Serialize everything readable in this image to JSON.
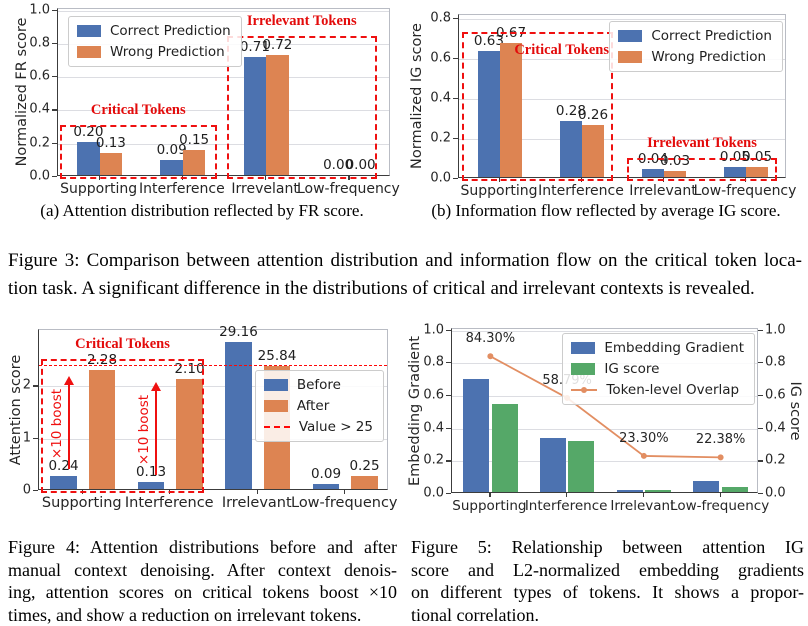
{
  "colors": {
    "blue": "#4C72B0",
    "orange": "#DD8452",
    "green": "#55A868",
    "line_orange": "#E28E62",
    "red": "#EF1010",
    "grid": "#DCDDE2"
  },
  "figure3": {
    "subcaption_a": "(a) Attention distribution reflected by FR score.",
    "subcaption_b": "(b) Information flow reflected by average IG score.",
    "caption_lines": [
      "Figure 3: Comparison between attention distribution and information flow on the critical token loca-",
      "tion task. A significant difference in the distributions of critical and irrelevant contexts is revealed."
    ]
  },
  "figure4": {
    "caption_lines": [
      "Figure 4: Attention distributions before and after",
      "manual context denoising. After context denois-",
      "ing, attention scores on critical tokens boost ×10",
      "times, and show a reduction on irrelevant tokens."
    ]
  },
  "figure5": {
    "caption_lines": [
      "Figure 5: Relationship between attention IG",
      "score and L2-normalized embedding gradients",
      "on different types of tokens. It shows a propor-",
      "tional correlation."
    ]
  },
  "chart_data": [
    {
      "dom_id": "chart-fr",
      "type": "bar",
      "title": "",
      "ylabel": "Normalized FR score",
      "ylim": [
        0,
        1.01
      ],
      "yticks": [
        0,
        0.2,
        0.4,
        0.6,
        0.8,
        1.0
      ],
      "ytick_labels": [
        "0.0",
        "0.2",
        "0.4",
        "0.6",
        "0.8",
        "1.0"
      ],
      "categories": [
        "Supporting",
        "Interference",
        "Irrevelant",
        "Low-frequency"
      ],
      "show_bar_labels": true,
      "series": [
        {
          "name": "Correct Prediction",
          "color": "blue",
          "values": [
            0.2,
            0.09,
            0.71,
            0.0
          ],
          "labels": [
            "0.20",
            "0.09",
            "0.71",
            "0.00"
          ]
        },
        {
          "name": "Wrong Prediction",
          "color": "orange",
          "values": [
            0.13,
            0.15,
            0.72,
            0.0
          ],
          "labels": [
            "0.13",
            "0.15",
            "0.72",
            "0.00"
          ]
        }
      ],
      "legend": {
        "items": [
          {
            "type": "patch",
            "color": "blue",
            "label": "Correct Prediction"
          },
          {
            "type": "patch",
            "color": "orange",
            "label": "Wrong Prediction"
          }
        ]
      },
      "boxes": [
        {
          "label": "Critical Tokens",
          "cats": [
            0,
            1
          ],
          "y0": -0.012,
          "y1": 0.315,
          "label_pos": "above",
          "inset_l": 2,
          "inset_r": 8
        },
        {
          "label": "Irrelevant Tokens",
          "cats": [
            2,
            3
          ],
          "y0": -0.012,
          "y1": 0.845,
          "label_pos": "above",
          "inset_l": 2,
          "inset_r": 14
        }
      ]
    },
    {
      "dom_id": "chart-ig",
      "type": "bar",
      "title": "",
      "ylabel": "Normalized IG score",
      "ylim": [
        0,
        0.82
      ],
      "yticks": [
        0,
        0.2,
        0.4,
        0.6,
        0.8
      ],
      "ytick_labels": [
        "0.0",
        "0.2",
        "0.4",
        "0.6",
        "0.8"
      ],
      "categories": [
        "Supporting",
        "Interference",
        "Irrelevant",
        "Low-frequency"
      ],
      "show_bar_labels": true,
      "series": [
        {
          "name": "Correct Prediction",
          "color": "blue",
          "values": [
            0.63,
            0.28,
            0.04,
            0.05
          ],
          "labels": [
            "0.63",
            "0.28",
            "0.04",
            "0.05"
          ]
        },
        {
          "name": "Wrong Prediction",
          "color": "orange",
          "values": [
            0.67,
            0.26,
            0.03,
            0.05
          ],
          "labels": [
            "0.67",
            "0.26",
            "0.03",
            "0.05"
          ]
        }
      ],
      "legend": {
        "items": [
          {
            "type": "patch",
            "color": "blue",
            "label": "Correct Prediction"
          },
          {
            "type": "patch",
            "color": "orange",
            "label": "Wrong Prediction"
          }
        ]
      },
      "boxes": [
        {
          "label": "Critical Tokens",
          "cats": [
            0,
            1
          ],
          "y0": -0.01,
          "y1": 0.735,
          "label_pos": "in-top",
          "label_fx": 0.66,
          "inset_l": 3,
          "inset_r": 10
        },
        {
          "label": "Irrelevant Tokens",
          "cats": [
            2,
            3
          ],
          "y0": -0.01,
          "y1": 0.107,
          "label_pos": "above",
          "inset_l": 4,
          "inset_r": 10
        }
      ]
    },
    {
      "dom_id": "chart-att",
      "type": "bar",
      "title": "",
      "ylabel": "Attention score",
      "ylim": [
        0,
        3.08
      ],
      "yticks": [
        0,
        1,
        2
      ],
      "ytick_labels": [
        "0",
        "1",
        "2"
      ],
      "categories": [
        "Supporting",
        "Interference",
        "Irrelevant",
        "Low-frequency"
      ],
      "show_bar_labels": true,
      "series": [
        {
          "name": "Before",
          "color": "blue",
          "values": [
            0.24,
            0.13,
            29.16,
            0.09
          ],
          "display": [
            null,
            null,
            2.81,
            null
          ],
          "labels": [
            "0.24",
            "0.13",
            "29.16",
            "0.09"
          ]
        },
        {
          "name": "After",
          "color": "orange",
          "values": [
            2.28,
            2.1,
            25.84,
            0.25
          ],
          "display": [
            null,
            null,
            2.36,
            null
          ],
          "labels": [
            "2.28",
            "2.10",
            "25.84",
            "0.25"
          ]
        }
      ],
      "legend": {
        "items": [
          {
            "type": "patch",
            "color": "blue",
            "label": "Before"
          },
          {
            "type": "patch",
            "color": "orange",
            "label": "After"
          },
          {
            "type": "dash",
            "color": "red",
            "label": "Value > 25"
          }
        ]
      },
      "hline": {
        "y": 2.41
      },
      "boxes": [
        {
          "label": "Critical Tokens",
          "cats": [
            0,
            1
          ],
          "y0": -0.06,
          "y1": 2.52,
          "label_pos": "above",
          "inset_l": 2,
          "inset_r": 10
        }
      ],
      "arrows": [
        {
          "cat": 0,
          "frac": -0.16,
          "y0": 0.42,
          "y1": 2.16,
          "text": "×10 boost"
        },
        {
          "cat": 1,
          "frac": -0.16,
          "y0": 0.3,
          "y1": 2.04,
          "text": "×10 boost"
        }
      ]
    },
    {
      "dom_id": "chart-ovl",
      "type": "bar",
      "title": "",
      "ylabel": "Embedding Gradient",
      "ylabel_right": "IG score",
      "right_axis": true,
      "ylim": [
        0,
        1.01
      ],
      "yticks": [
        0,
        0.2,
        0.4,
        0.6,
        0.8,
        1.0
      ],
      "ytick_labels": [
        "0.0",
        "0.2",
        "0.4",
        "0.6",
        "0.8",
        "1.0"
      ],
      "categories": [
        "Supporting",
        "Interference",
        "Irrelevant",
        "Low-frequency"
      ],
      "show_bar_labels": false,
      "series": [
        {
          "name": "Embedding Gradient",
          "color": "blue",
          "values": [
            0.69,
            0.33,
            0.015,
            0.07
          ],
          "labels": [
            "",
            "",
            "",
            ""
          ]
        },
        {
          "name": "IG score",
          "color": "green",
          "values": [
            0.54,
            0.31,
            0.015,
            0.03
          ],
          "labels": [
            "",
            "",
            "",
            ""
          ]
        }
      ],
      "line": {
        "name": "Token-level Overlap",
        "color": "line_orange",
        "values": [
          0.843,
          0.588,
          0.233,
          0.224
        ],
        "labels": [
          "84.30%",
          "58.79%",
          "23.30%",
          "22.38%"
        ]
      },
      "legend": {
        "items": [
          {
            "type": "patch",
            "color": "blue",
            "label": "Embedding Gradient"
          },
          {
            "type": "patch",
            "color": "green",
            "label": "IG score"
          },
          {
            "type": "linemarker",
            "color": "line_orange",
            "label": "Token-level Overlap"
          }
        ]
      }
    }
  ]
}
